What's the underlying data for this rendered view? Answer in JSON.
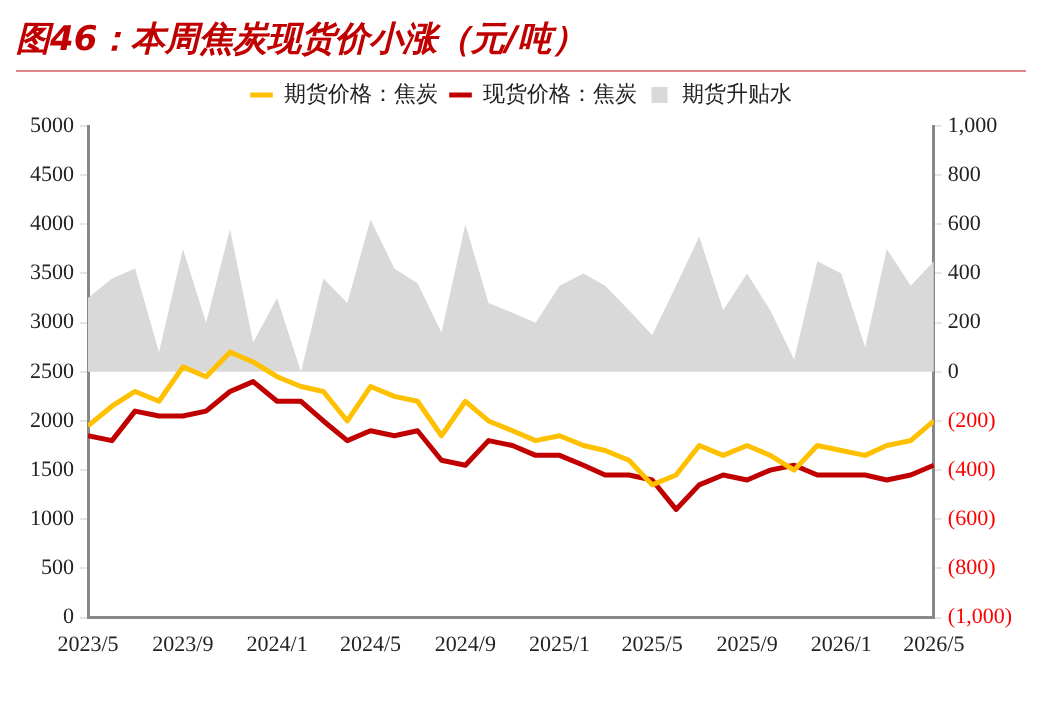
{
  "chart_data": {
    "type": "line",
    "title": "图46：本周焦炭现货价小涨（元/吨）",
    "x": [
      "2023-05",
      "2023-06",
      "2023-07",
      "2023-08",
      "2023-09",
      "2023-10",
      "2023-11",
      "2023-12",
      "2024-01",
      "2024-02",
      "2024-03",
      "2024-04",
      "2024-05",
      "2024-06",
      "2024-07",
      "2024-08",
      "2024-09",
      "2024-10",
      "2024-11",
      "2024-12",
      "2025-01",
      "2025-02",
      "2025-03",
      "2025-04",
      "2025-05",
      "2025-06",
      "2025-07",
      "2025-08",
      "2025-09",
      "2025-10",
      "2025-11",
      "2025-12",
      "2026-01",
      "2026-02",
      "2026-03",
      "2026-04",
      "2026-05"
    ],
    "series": [
      {
        "name": "期货升贴水",
        "type": "area",
        "axis": "y2",
        "color": "#d9d9d9",
        "values": [
          300,
          380,
          420,
          80,
          500,
          200,
          580,
          120,
          300,
          0,
          380,
          280,
          620,
          420,
          360,
          160,
          600,
          280,
          240,
          200,
          350,
          400,
          350,
          250,
          150,
          350,
          550,
          250,
          400,
          250,
          50,
          450,
          400,
          100,
          500,
          350,
          450
        ]
      },
      {
        "name": "期货价格：焦炭",
        "color": "#ffc000",
        "values": [
          1950,
          2150,
          2300,
          2200,
          2550,
          2450,
          2700,
          2600,
          2450,
          2350,
          2300,
          2000,
          2350,
          2250,
          2200,
          1850,
          2200,
          2000,
          1900,
          1800,
          1850,
          1750,
          1700,
          1600,
          1350,
          1450,
          1750,
          1650,
          1750,
          1650,
          1500,
          1750,
          1700,
          1650,
          1750,
          1800,
          2000
        ]
      },
      {
        "name": "现货价格：焦炭",
        "color": "#c00000",
        "values": [
          1850,
          1800,
          2100,
          2050,
          2050,
          2100,
          2300,
          2400,
          2200,
          2200,
          2000,
          1800,
          1900,
          1850,
          1900,
          1600,
          1550,
          1800,
          1750,
          1650,
          1650,
          1550,
          1450,
          1450,
          1400,
          1100,
          1350,
          1450,
          1400,
          1500,
          1550,
          1450,
          1450,
          1450,
          1400,
          1450,
          1550
        ]
      }
    ],
    "xlim": [
      "2023-05",
      "2026-05"
    ],
    "xticks": [
      {
        "value": "2023-05",
        "label": "2023/5"
      },
      {
        "value": "2023-09",
        "label": "2023/9"
      },
      {
        "value": "2024-01",
        "label": "2024/1"
      },
      {
        "value": "2024-05",
        "label": "2024/5"
      },
      {
        "value": "2024-09",
        "label": "2024/9"
      },
      {
        "value": "2025-01",
        "label": "2025/1"
      },
      {
        "value": "2025-05",
        "label": "2025/5"
      },
      {
        "value": "2025-09",
        "label": "2025/9"
      },
      {
        "value": "2026-01",
        "label": "2026/1"
      },
      {
        "value": "2026-05",
        "label": "2026/5"
      }
    ],
    "ylim": [
      0,
      5000
    ],
    "yticks": [
      0,
      500,
      1000,
      1500,
      2000,
      2500,
      3000,
      3500,
      4000,
      4500,
      5000
    ],
    "y2lim": [
      -1000,
      1000
    ],
    "y2ticks": [
      {
        "value": -1000,
        "label": "(1,000)"
      },
      {
        "value": -800,
        "label": "(800)"
      },
      {
        "value": -600,
        "label": "(600)"
      },
      {
        "value": -400,
        "label": "(400)"
      },
      {
        "value": -200,
        "label": "(200)"
      },
      0,
      200,
      400,
      600,
      800,
      {
        "value": 1000,
        "label": "1,000"
      }
    ],
    "legend": "top",
    "grid": false,
    "marker": "none",
    "line_style": "solid"
  }
}
